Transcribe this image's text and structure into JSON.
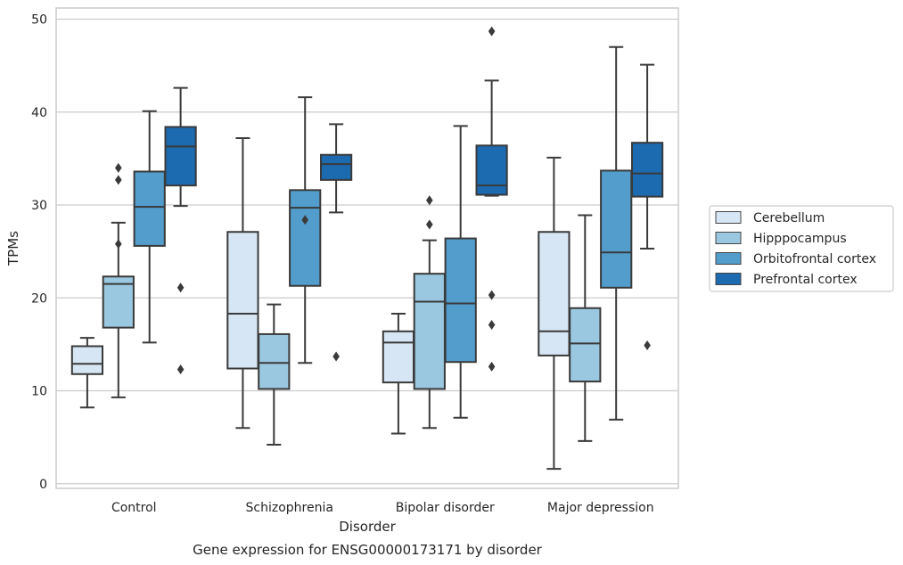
{
  "chart_data": {
    "type": "boxplot",
    "title": "Gene expression for ENSG00000173171 by disorder",
    "xlabel": "Disorder",
    "ylabel": "TPMs",
    "ylim": [
      -0.5,
      51.2
    ],
    "yticks": [
      0,
      10,
      20,
      30,
      40,
      50
    ],
    "grid": true,
    "legend_position": "right",
    "categories": [
      "Control",
      "Schizophrenia",
      "Bipolar disorder",
      "Major depression"
    ],
    "series": [
      {
        "name": "Cerebellum",
        "color": "#d6e6f4",
        "boxes": [
          {
            "whisker_low": 8.2,
            "q1": 11.8,
            "median": 12.9,
            "q3": 14.8,
            "whisker_high": 15.7,
            "outliers": []
          },
          {
            "whisker_low": 6.0,
            "q1": 12.4,
            "median": 18.3,
            "q3": 27.1,
            "whisker_high": 37.2,
            "outliers": []
          },
          {
            "whisker_low": 5.4,
            "q1": 10.9,
            "median": 15.2,
            "q3": 16.4,
            "whisker_high": 18.3,
            "outliers": []
          },
          {
            "whisker_low": 1.6,
            "q1": 13.8,
            "median": 16.4,
            "q3": 27.1,
            "whisker_high": 35.1,
            "outliers": []
          }
        ]
      },
      {
        "name": "Hipppocampus",
        "color": "#9ac8e0",
        "boxes": [
          {
            "whisker_low": 9.3,
            "q1": 16.8,
            "median": 21.5,
            "q3": 22.3,
            "whisker_high": 28.1,
            "outliers": [
              34.0,
              32.7,
              25.8
            ]
          },
          {
            "whisker_low": 4.2,
            "q1": 10.2,
            "median": 13.0,
            "q3": 16.1,
            "whisker_high": 19.3,
            "outliers": []
          },
          {
            "whisker_low": 6.0,
            "q1": 10.2,
            "median": 19.6,
            "q3": 22.6,
            "whisker_high": 26.2,
            "outliers": [
              30.5,
              27.9
            ]
          },
          {
            "whisker_low": 4.6,
            "q1": 11.0,
            "median": 15.1,
            "q3": 18.9,
            "whisker_high": 28.9,
            "outliers": []
          }
        ]
      },
      {
        "name": "Orbitofrontal cortex",
        "color": "#529dcc",
        "boxes": [
          {
            "whisker_low": 15.2,
            "q1": 25.6,
            "median": 29.8,
            "q3": 33.6,
            "whisker_high": 40.1,
            "outliers": []
          },
          {
            "whisker_low": 13.0,
            "q1": 21.3,
            "median": 29.7,
            "q3": 31.6,
            "whisker_high": 41.6,
            "outliers": [
              28.4
            ]
          },
          {
            "whisker_low": 7.1,
            "q1": 13.1,
            "median": 19.4,
            "q3": 26.4,
            "whisker_high": 38.5,
            "outliers": []
          },
          {
            "whisker_low": 6.9,
            "q1": 21.1,
            "median": 24.9,
            "q3": 33.7,
            "whisker_high": 47.0,
            "outliers": []
          }
        ]
      },
      {
        "name": "Prefrontal cortex",
        "color": "#1c6aaf",
        "boxes": [
          {
            "whisker_low": 29.9,
            "q1": 32.1,
            "median": 36.3,
            "q3": 38.4,
            "whisker_high": 42.6,
            "outliers": [
              21.1,
              12.3
            ]
          },
          {
            "whisker_low": 29.2,
            "q1": 32.7,
            "median": 34.4,
            "q3": 35.4,
            "whisker_high": 38.7,
            "outliers": [
              13.7
            ]
          },
          {
            "whisker_low": 31.0,
            "q1": 31.1,
            "median": 32.1,
            "q3": 36.4,
            "whisker_high": 43.4,
            "outliers": [
              48.7,
              20.3,
              17.1,
              12.6
            ]
          },
          {
            "whisker_low": 25.3,
            "q1": 30.9,
            "median": 33.4,
            "q3": 36.7,
            "whisker_high": 45.1,
            "outliers": [
              14.9
            ]
          }
        ]
      }
    ]
  }
}
